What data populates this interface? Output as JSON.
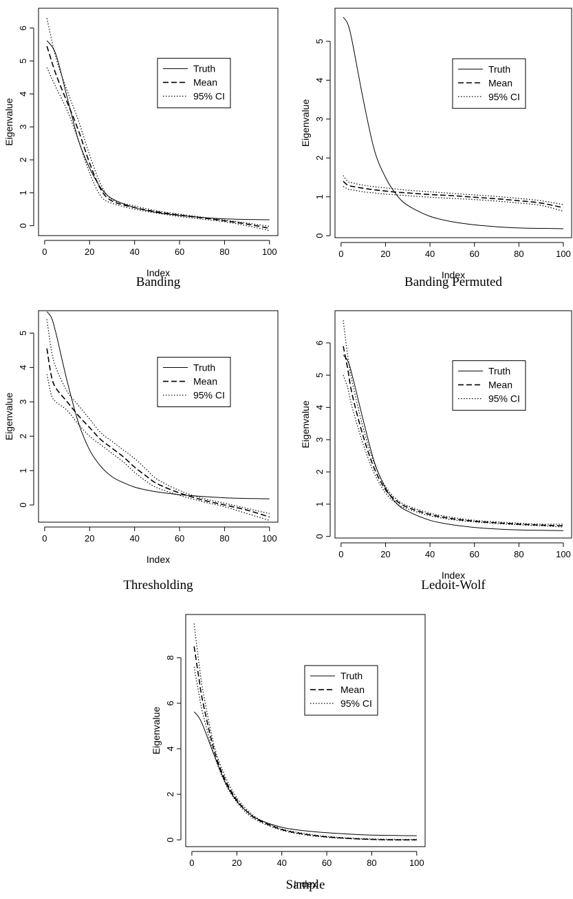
{
  "chart_data": [
    {
      "type": "line",
      "title": "Banding",
      "xlabel": "Index",
      "ylabel": "Eigenvalue",
      "xlim": [
        1,
        100
      ],
      "ylim": [
        -0.3,
        6.6
      ],
      "xticks": [
        "0",
        "20",
        "40",
        "60",
        "80",
        "100"
      ],
      "yticks": [
        "0",
        "1",
        "2",
        "3",
        "4",
        "5",
        "6"
      ],
      "legend": {
        "position": "top-right",
        "entries": [
          "Truth",
          "Mean",
          "95% CI"
        ]
      },
      "x": [
        1,
        5,
        10,
        15,
        20,
        25,
        30,
        40,
        50,
        60,
        70,
        80,
        90,
        100
      ],
      "series": [
        {
          "name": "Truth",
          "style": "solid",
          "values": [
            5.62,
            5.2,
            3.9,
            2.6,
            1.75,
            1.15,
            0.82,
            0.55,
            0.4,
            0.31,
            0.25,
            0.21,
            0.19,
            0.18
          ]
        },
        {
          "name": "Mean",
          "style": "dashed",
          "values": [
            5.45,
            4.6,
            3.75,
            2.9,
            1.9,
            1.1,
            0.75,
            0.55,
            0.42,
            0.32,
            0.24,
            0.15,
            0.05,
            -0.08
          ]
        },
        {
          "name": "95% CI",
          "style": "dotted",
          "values": [
            6.3,
            5.1,
            4.1,
            3.2,
            2.15,
            1.25,
            0.8,
            0.6,
            0.45,
            0.35,
            0.26,
            0.17,
            0.08,
            -0.02
          ]
        },
        {
          "name": "",
          "style": "dotted",
          "values": [
            4.8,
            4.2,
            3.5,
            2.6,
            1.6,
            0.9,
            0.68,
            0.5,
            0.38,
            0.28,
            0.2,
            0.12,
            0.0,
            -0.15
          ]
        }
      ]
    },
    {
      "type": "line",
      "title": "Banding Permuted",
      "xlabel": "Index",
      "ylabel": "Eigenvalue",
      "xlim": [
        1,
        100
      ],
      "ylim": [
        -0.05,
        5.85
      ],
      "xticks": [
        "0",
        "20",
        "40",
        "60",
        "80",
        "100"
      ],
      "yticks": [
        "0",
        "1",
        "2",
        "3",
        "4",
        "5"
      ],
      "legend": {
        "position": "top-right",
        "entries": [
          "Truth",
          "Mean",
          "95% CI"
        ]
      },
      "x": [
        1,
        3,
        5,
        10,
        15,
        20,
        25,
        30,
        40,
        50,
        60,
        70,
        80,
        90,
        100
      ],
      "series": [
        {
          "name": "Truth",
          "style": "solid",
          "values": [
            5.62,
            5.45,
            5.0,
            3.5,
            2.2,
            1.5,
            1.05,
            0.78,
            0.5,
            0.36,
            0.28,
            0.23,
            0.2,
            0.19,
            0.18
          ]
        },
        {
          "name": "Mean",
          "style": "dashed",
          "values": [
            1.4,
            1.3,
            1.27,
            1.22,
            1.18,
            1.15,
            1.12,
            1.1,
            1.06,
            1.03,
            0.99,
            0.95,
            0.9,
            0.84,
            0.72
          ]
        },
        {
          "name": "95% CI",
          "style": "dotted",
          "values": [
            1.55,
            1.4,
            1.36,
            1.3,
            1.26,
            1.23,
            1.2,
            1.17,
            1.13,
            1.09,
            1.05,
            1.01,
            0.96,
            0.9,
            0.8
          ]
        },
        {
          "name": "",
          "style": "dotted",
          "values": [
            1.27,
            1.2,
            1.18,
            1.13,
            1.1,
            1.07,
            1.05,
            1.03,
            0.99,
            0.96,
            0.93,
            0.89,
            0.84,
            0.78,
            0.63
          ]
        }
      ]
    },
    {
      "type": "line",
      "title": "Thresholding",
      "xlabel": "Index",
      "ylabel": "Eigenvalue",
      "xlim": [
        1,
        100
      ],
      "ylim": [
        -0.5,
        5.65
      ],
      "xticks": [
        "0",
        "20",
        "40",
        "60",
        "80",
        "100"
      ],
      "yticks": [
        "0",
        "1",
        "2",
        "3",
        "4",
        "5"
      ],
      "legend": {
        "position": "top-right",
        "entries": [
          "Truth",
          "Mean",
          "95% CI"
        ]
      },
      "x": [
        1,
        3,
        5,
        10,
        15,
        20,
        25,
        30,
        35,
        40,
        45,
        50,
        60,
        70,
        80,
        90,
        100
      ],
      "series": [
        {
          "name": "Truth",
          "style": "solid",
          "values": [
            5.62,
            5.45,
            5.0,
            3.6,
            2.4,
            1.6,
            1.12,
            0.82,
            0.65,
            0.52,
            0.44,
            0.38,
            0.3,
            0.25,
            0.21,
            0.19,
            0.18
          ]
        },
        {
          "name": "Mean",
          "style": "dashed",
          "values": [
            4.55,
            3.75,
            3.4,
            3.0,
            2.6,
            2.25,
            1.9,
            1.65,
            1.4,
            1.1,
            0.85,
            0.62,
            0.35,
            0.15,
            0.0,
            -0.15,
            -0.35
          ]
        },
        {
          "name": "95% CI",
          "style": "dotted",
          "values": [
            5.4,
            4.5,
            4.0,
            3.3,
            2.9,
            2.5,
            2.1,
            1.85,
            1.6,
            1.35,
            1.05,
            0.75,
            0.42,
            0.2,
            0.05,
            -0.1,
            -0.25
          ]
        },
        {
          "name": "",
          "style": "dotted",
          "values": [
            3.8,
            3.2,
            3.0,
            2.75,
            2.35,
            2.0,
            1.75,
            1.5,
            1.25,
            0.95,
            0.7,
            0.5,
            0.28,
            0.1,
            -0.05,
            -0.25,
            -0.45
          ]
        }
      ]
    },
    {
      "type": "line",
      "title": "Ledoit-Wolf",
      "xlabel": "Index",
      "ylabel": "Eigenvalue",
      "xlim": [
        1,
        100
      ],
      "ylim": [
        -0.05,
        7.0
      ],
      "xticks": [
        "0",
        "20",
        "40",
        "60",
        "80",
        "100"
      ],
      "yticks": [
        "0",
        "1",
        "2",
        "3",
        "4",
        "5",
        "6"
      ],
      "legend": {
        "position": "top-right",
        "entries": [
          "Truth",
          "Mean",
          "95% CI"
        ]
      },
      "x": [
        1,
        3,
        5,
        10,
        15,
        20,
        25,
        30,
        40,
        50,
        60,
        70,
        80,
        90,
        100
      ],
      "series": [
        {
          "name": "Truth",
          "style": "solid",
          "values": [
            5.62,
            5.45,
            5.0,
            3.6,
            2.3,
            1.5,
            1.02,
            0.78,
            0.5,
            0.36,
            0.28,
            0.23,
            0.2,
            0.19,
            0.18
          ]
        },
        {
          "name": "Mean",
          "style": "dashed",
          "values": [
            5.9,
            5.2,
            4.4,
            3.1,
            2.1,
            1.45,
            1.1,
            0.9,
            0.68,
            0.55,
            0.47,
            0.42,
            0.38,
            0.35,
            0.33
          ]
        },
        {
          "name": "95% CI",
          "style": "dotted",
          "values": [
            6.7,
            5.6,
            4.8,
            3.35,
            2.25,
            1.55,
            1.15,
            0.95,
            0.72,
            0.59,
            0.5,
            0.45,
            0.41,
            0.38,
            0.38
          ]
        },
        {
          "name": "",
          "style": "dotted",
          "values": [
            5.0,
            4.6,
            4.0,
            2.85,
            1.95,
            1.35,
            1.02,
            0.85,
            0.64,
            0.52,
            0.45,
            0.4,
            0.36,
            0.33,
            0.29
          ]
        }
      ]
    },
    {
      "type": "line",
      "title": "Sample",
      "xlabel": "Index",
      "ylabel": "Eigenvalue",
      "xlim": [
        1,
        100
      ],
      "ylim": [
        -0.3,
        9.9
      ],
      "xticks": [
        "0",
        "20",
        "40",
        "60",
        "80",
        "100"
      ],
      "yticks": [
        "0",
        "2",
        "4",
        "6",
        "8"
      ],
      "legend": {
        "position": "top-right",
        "entries": [
          "Truth",
          "Mean",
          "95% CI"
        ]
      },
      "x": [
        1,
        3,
        5,
        10,
        15,
        20,
        25,
        30,
        40,
        50,
        60,
        70,
        80,
        90,
        100
      ],
      "series": [
        {
          "name": "Truth",
          "style": "solid",
          "values": [
            5.62,
            5.4,
            5.0,
            3.7,
            2.5,
            1.7,
            1.2,
            0.88,
            0.55,
            0.4,
            0.31,
            0.25,
            0.21,
            0.19,
            0.18
          ]
        },
        {
          "name": "Mean",
          "style": "dashed",
          "values": [
            8.5,
            7.2,
            6.0,
            3.9,
            2.6,
            1.75,
            1.2,
            0.85,
            0.45,
            0.25,
            0.13,
            0.06,
            0.02,
            0.0,
            0.0
          ]
        },
        {
          "name": "95% CI",
          "style": "dotted",
          "values": [
            9.5,
            7.9,
            6.5,
            4.1,
            2.75,
            1.85,
            1.28,
            0.9,
            0.48,
            0.28,
            0.15,
            0.08,
            0.04,
            0.02,
            0.02
          ]
        },
        {
          "name": "",
          "style": "dotted",
          "values": [
            7.6,
            6.5,
            5.5,
            3.7,
            2.45,
            1.65,
            1.12,
            0.8,
            0.42,
            0.22,
            0.11,
            0.05,
            0.01,
            -0.01,
            -0.01
          ]
        }
      ]
    }
  ]
}
